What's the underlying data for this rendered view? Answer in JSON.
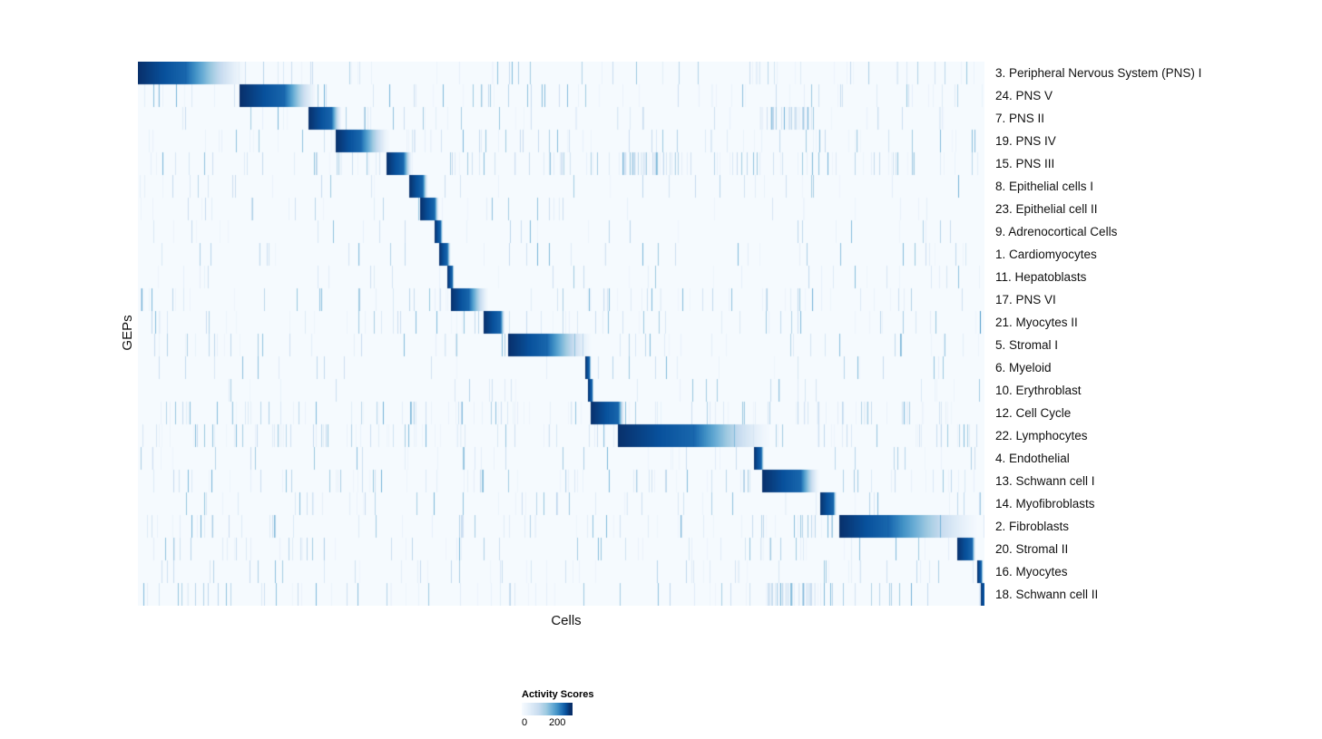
{
  "chart_data": {
    "type": "heatmap",
    "title": "",
    "xlabel": "Cells",
    "ylabel": "GEPs",
    "colormap": "Blues",
    "grid": false,
    "colorbar": {
      "title": "Activity Scores",
      "min": 0,
      "max": 200,
      "min_label": "0",
      "max_label": "200",
      "position": "bottom-center"
    },
    "n_rows": 24,
    "row_note": "Each row is a GEP; dark diagonal blocks mark the cell cluster where that GEP is most active. start/peak/fade are fractions of the x (cells) axis; noise is background streak density.",
    "rows": [
      {
        "label": "3. Peripheral Nervous System (PNS) I",
        "start": 0.0,
        "peak": 0.055,
        "fade": 0.125,
        "noise": 0.055
      },
      {
        "label": "24. PNS V",
        "start": 0.12,
        "peak": 0.172,
        "fade": 0.21,
        "noise": 0.075
      },
      {
        "label": "7. PNS II",
        "start": 0.201,
        "peak": 0.228,
        "fade": 0.24,
        "noise": 0.05,
        "clusters": [
          [
            0.73,
            0.8,
            0.4
          ]
        ]
      },
      {
        "label": "19. PNS IV",
        "start": 0.233,
        "peak": 0.262,
        "fade": 0.296,
        "noise": 0.09
      },
      {
        "label": "15. PNS III",
        "start": 0.293,
        "peak": 0.313,
        "fade": 0.323,
        "noise": 0.11,
        "clusters": [
          [
            0.565,
            0.635,
            0.3
          ]
        ]
      },
      {
        "label": "8. Epithelial cells I",
        "start": 0.32,
        "peak": 0.336,
        "fade": 0.342,
        "noise": 0.035
      },
      {
        "label": "23. Epithelial cell II",
        "start": 0.333,
        "peak": 0.35,
        "fade": 0.355,
        "noise": 0.04
      },
      {
        "label": "9. Adrenocortical Cells",
        "start": 0.35,
        "peak": 0.357,
        "fade": 0.36,
        "noise": 0.03
      },
      {
        "label": "1. Cardiomyocytes",
        "start": 0.355,
        "peak": 0.365,
        "fade": 0.369,
        "noise": 0.035
      },
      {
        "label": "11. Hepatoblasts",
        "start": 0.365,
        "peak": 0.371,
        "fade": 0.373,
        "noise": 0.03
      },
      {
        "label": "17. PNS VI",
        "start": 0.369,
        "peak": 0.39,
        "fade": 0.413,
        "noise": 0.07,
        "clusters": [
          [
            0.0,
            0.005,
            0.9
          ]
        ]
      },
      {
        "label": "21. Myocytes II",
        "start": 0.408,
        "peak": 0.428,
        "fade": 0.433,
        "noise": 0.06,
        "clusters": [
          [
            0.992,
            0.997,
            0.85
          ]
        ]
      },
      {
        "label": "5. Stromal I",
        "start": 0.437,
        "peak": 0.482,
        "fade": 0.534,
        "noise": 0.08
      },
      {
        "label": "6. Myeloid",
        "start": 0.528,
        "peak": 0.533,
        "fade": 0.535,
        "noise": 0.03
      },
      {
        "label": "10. Erythroblast",
        "start": 0.531,
        "peak": 0.536,
        "fade": 0.538,
        "noise": 0.03
      },
      {
        "label": "12. Cell Cycle",
        "start": 0.534,
        "peak": 0.567,
        "fade": 0.574,
        "noise": 0.115
      },
      {
        "label": "22. Lymphocytes",
        "start": 0.566,
        "peak": 0.655,
        "fade": 0.745,
        "noise": 0.115
      },
      {
        "label": "4. Endothelial",
        "start": 0.727,
        "peak": 0.736,
        "fade": 0.739,
        "noise": 0.04
      },
      {
        "label": "13. Schwann cell I",
        "start": 0.737,
        "peak": 0.782,
        "fade": 0.804,
        "noise": 0.08
      },
      {
        "label": "14. Myofibroblasts",
        "start": 0.805,
        "peak": 0.821,
        "fade": 0.825,
        "noise": 0.05
      },
      {
        "label": "2. Fibroblasts",
        "start": 0.828,
        "peak": 0.885,
        "fade": 0.99,
        "noise": 0.095
      },
      {
        "label": "20. Stromal II",
        "start": 0.967,
        "peak": 0.985,
        "fade": 0.989,
        "noise": 0.08
      },
      {
        "label": "16. Myocytes",
        "start": 0.991,
        "peak": 0.996,
        "fade": 0.998,
        "noise": 0.05
      },
      {
        "label": "18. Schwann cell II",
        "start": 0.995,
        "peak": 1.0,
        "fade": 1.0,
        "noise": 0.07,
        "clusters": [
          [
            0.74,
            0.8,
            0.35
          ]
        ]
      }
    ],
    "color_hex": {
      "min_color": "#f7fbff",
      "max_color": "#08306b"
    }
  }
}
